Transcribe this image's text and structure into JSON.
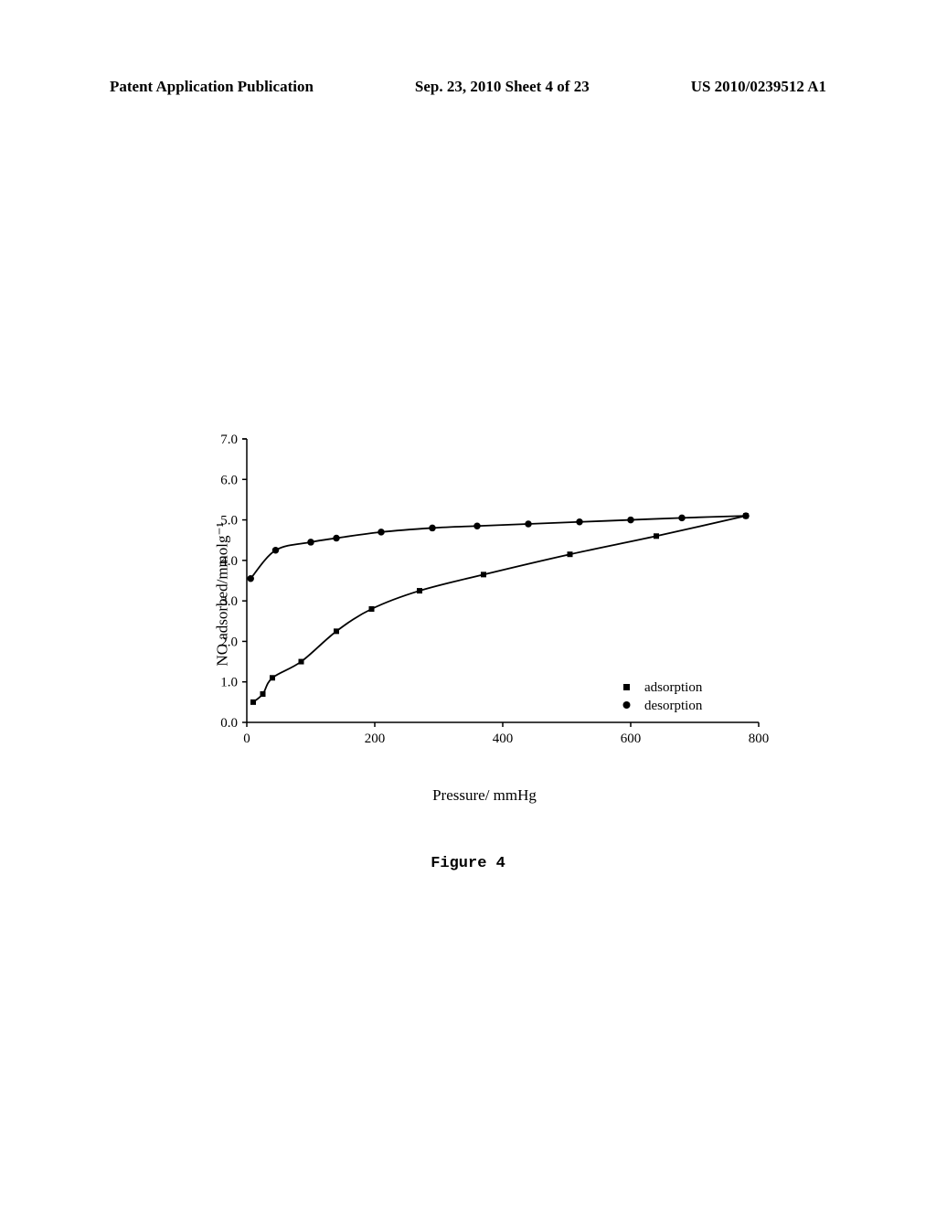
{
  "header": {
    "left": "Patent Application Publication",
    "center": "Sep. 23, 2010  Sheet 4 of 23",
    "right": "US 2010/0239512 A1"
  },
  "chart": {
    "type": "scatter-line",
    "xlabel": "Pressure/ mmHg",
    "ylabel": "NO adsorbed/mmolg⁻¹",
    "xlim": [
      0,
      800
    ],
    "ylim": [
      0.0,
      7.0
    ],
    "xtick_step": 200,
    "ytick_step": 1.0,
    "xticks": [
      0,
      200,
      400,
      600,
      800
    ],
    "yticks": [
      0.0,
      1.0,
      2.0,
      3.0,
      4.0,
      5.0,
      6.0,
      7.0
    ],
    "background_color": "#ffffff",
    "line_color": "#000000",
    "marker_color": "#000000",
    "series": [
      {
        "name": "adsorption",
        "marker": "square",
        "marker_size": 6,
        "points": [
          {
            "x": 10,
            "y": 0.5
          },
          {
            "x": 25,
            "y": 0.7
          },
          {
            "x": 40,
            "y": 1.1
          },
          {
            "x": 85,
            "y": 1.5
          },
          {
            "x": 140,
            "y": 2.25
          },
          {
            "x": 195,
            "y": 2.8
          },
          {
            "x": 270,
            "y": 3.25
          },
          {
            "x": 370,
            "y": 3.65
          },
          {
            "x": 505,
            "y": 4.15
          },
          {
            "x": 640,
            "y": 4.6
          },
          {
            "x": 780,
            "y": 5.1
          }
        ]
      },
      {
        "name": "desorption",
        "marker": "circle",
        "marker_size": 6,
        "points": [
          {
            "x": 6,
            "y": 3.55
          },
          {
            "x": 45,
            "y": 4.25
          },
          {
            "x": 100,
            "y": 4.45
          },
          {
            "x": 140,
            "y": 4.55
          },
          {
            "x": 210,
            "y": 4.7
          },
          {
            "x": 290,
            "y": 4.8
          },
          {
            "x": 360,
            "y": 4.85
          },
          {
            "x": 440,
            "y": 4.9
          },
          {
            "x": 520,
            "y": 4.95
          },
          {
            "x": 600,
            "y": 5.0
          },
          {
            "x": 680,
            "y": 5.05
          },
          {
            "x": 780,
            "y": 5.1
          }
        ]
      }
    ],
    "legend": {
      "items": [
        {
          "marker": "square",
          "label": "adsorption"
        },
        {
          "marker": "circle",
          "label": "desorption"
        }
      ],
      "position": "lower-right"
    }
  },
  "figure_caption": "Figure 4"
}
